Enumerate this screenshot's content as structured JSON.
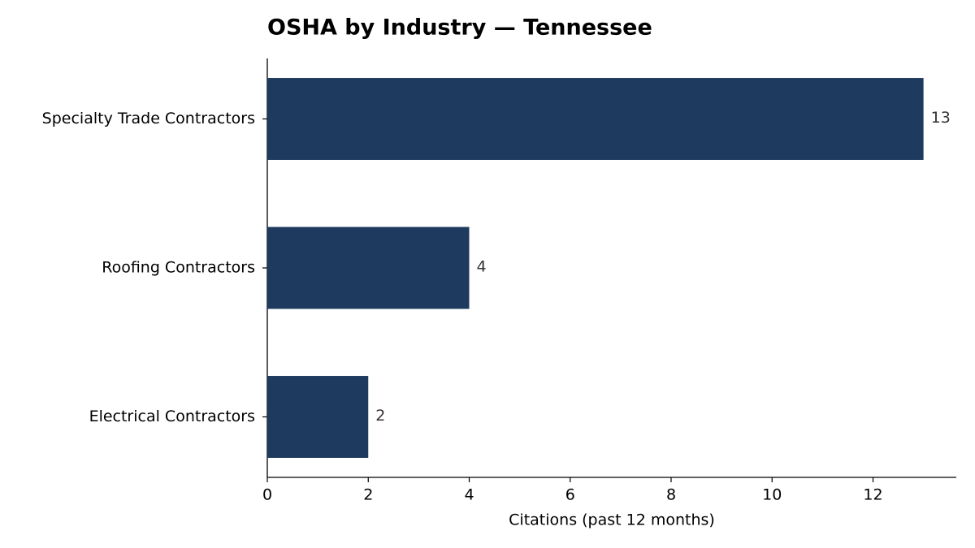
{
  "chart_data": {
    "type": "bar",
    "orientation": "horizontal",
    "title": "OSHA by Industry — Tennessee",
    "x_label": "Citations (past 12 months)",
    "categories": [
      "Specialty Trade Contractors",
      "Roofing Contractors",
      "Electrical Contractors"
    ],
    "values": [
      13,
      4,
      2
    ],
    "color": "#1f3a5f",
    "xlim": [
      0,
      13.65
    ],
    "xticks": [
      0,
      2,
      4,
      6,
      8,
      10,
      12
    ],
    "grid": false
  }
}
